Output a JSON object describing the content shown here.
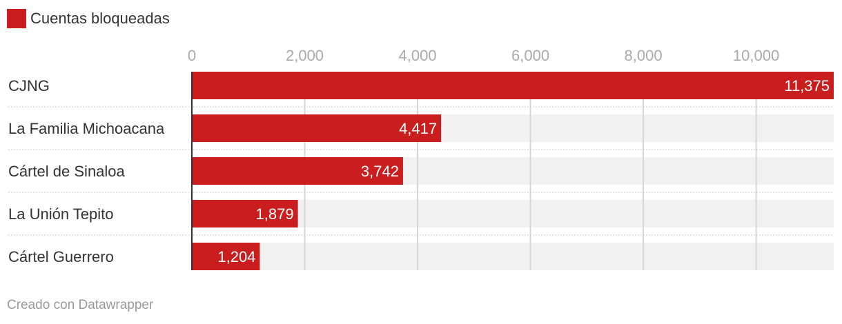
{
  "legend": {
    "label": "Cuentas bloqueadas",
    "color": "#c91d1e"
  },
  "chart_data": {
    "type": "bar",
    "orientation": "horizontal",
    "categories": [
      "CJNG",
      "La Familia Michoacana",
      "Cártel de Sinaloa",
      "La Unión Tepito",
      "Cártel Guerrero"
    ],
    "series": [
      {
        "name": "Cuentas bloqueadas",
        "values": [
          11375,
          4417,
          3742,
          1879,
          1204
        ],
        "value_labels": [
          "11,375",
          "4,417",
          "3,742",
          "1,879",
          "1,204"
        ],
        "color": "#c91d1e"
      }
    ],
    "xticks": [
      0,
      2000,
      4000,
      6000,
      8000,
      10000
    ],
    "xtick_labels": [
      "0",
      "2,000",
      "4,000",
      "6,000",
      "8,000",
      "10,000"
    ],
    "xlim": [
      0,
      11375
    ],
    "grid": true,
    "legend_position": "top-left"
  },
  "footer": {
    "credit": "Creado con Datawrapper"
  }
}
